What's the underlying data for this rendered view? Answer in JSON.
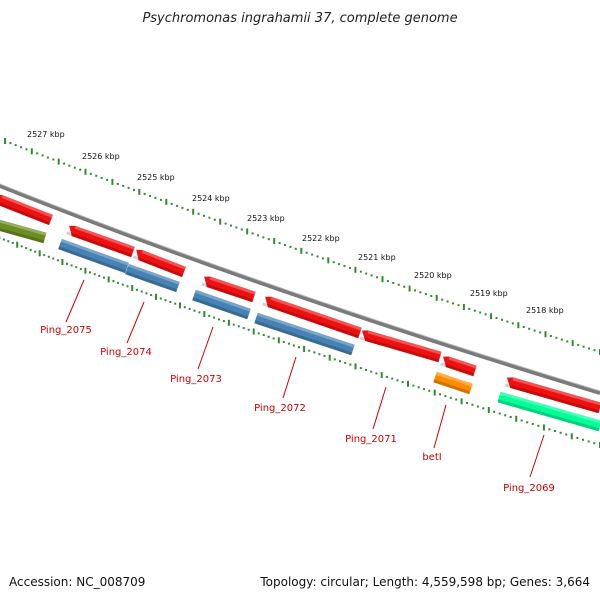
{
  "title": "Psychromonas ingrahamii 37, complete genome",
  "footer": {
    "accession": "Accession: NC_008709",
    "summary": "Topology: circular; Length: 4,559,598 bp; Genes: 3,664"
  },
  "scale_labels": [
    "2527 kbp",
    "2526 kbp",
    "2525 kbp",
    "2524 kbp",
    "2523 kbp",
    "2522 kbp",
    "2521 kbp",
    "2520 kbp",
    "2519 kbp",
    "2518 kbp"
  ],
  "gene_labels": [
    "Ping_2075",
    "Ping_2074",
    "Ping_2073",
    "Ping_2072",
    "Ping_2071",
    "betI",
    "Ping_2069"
  ],
  "colors": {
    "backbone": "#808080",
    "forward_gene": "#ee1111",
    "reverse_gene_blue": "#4682b4",
    "reverse_gene_olive": "#6b8e23",
    "reverse_gene_orange": "#ff8c00",
    "reverse_gene_spring": "#00ff99",
    "ticks": "#2e8b2e",
    "gene_label": "#cc0000"
  }
}
